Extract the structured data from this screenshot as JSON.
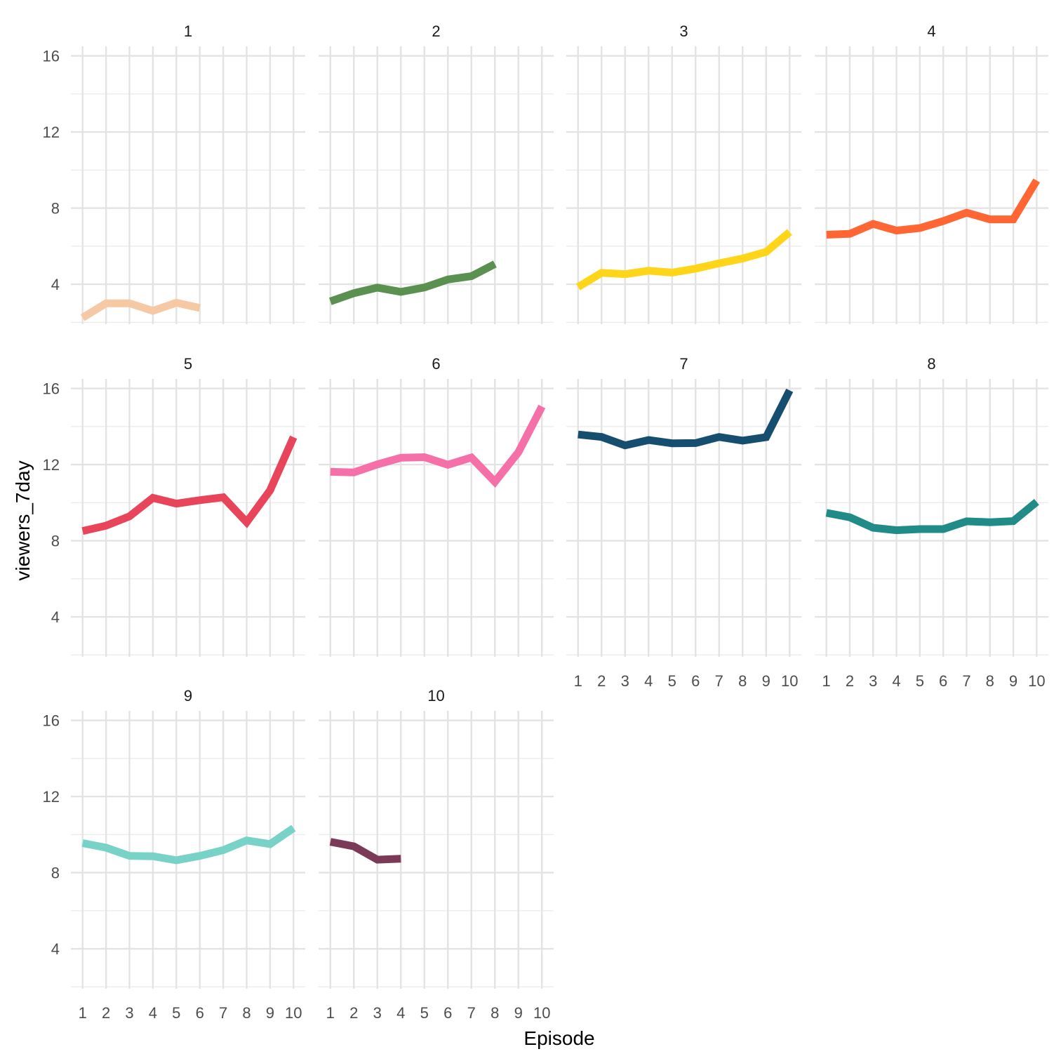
{
  "chart_data": {
    "type": "line",
    "layout": "facet_wrap",
    "xlabel": "Episode",
    "ylabel": "viewers_7day",
    "x_ticks": [
      1,
      2,
      3,
      4,
      5,
      6,
      7,
      8,
      9,
      10
    ],
    "y_ticks": [
      4,
      8,
      12,
      16
    ],
    "xlim": [
      0.5,
      10.5
    ],
    "ylim": [
      1.9,
      16.5
    ],
    "grid": true,
    "legend": "none",
    "panels": [
      {
        "label": "1",
        "color": "#F5C9A3",
        "x": [
          1,
          2,
          3,
          4,
          5,
          6
        ],
        "values": [
          2.24,
          3.0,
          3.0,
          2.6,
          3.03,
          2.75
        ]
      },
      {
        "label": "2",
        "color": "#5A9150",
        "x": [
          1,
          2,
          3,
          4,
          5,
          6,
          7,
          8
        ],
        "values": [
          3.1,
          3.53,
          3.82,
          3.6,
          3.83,
          4.25,
          4.42,
          5.06
        ]
      },
      {
        "label": "3",
        "color": "#FFD51A",
        "x": [
          1,
          2,
          3,
          4,
          5,
          6,
          7,
          8,
          9,
          10
        ],
        "values": [
          3.85,
          4.6,
          4.53,
          4.71,
          4.61,
          4.82,
          5.1,
          5.35,
          5.7,
          6.74
        ]
      },
      {
        "label": "4",
        "color": "#FF6633",
        "x": [
          1,
          2,
          3,
          4,
          5,
          6,
          7,
          8,
          9,
          10
        ],
        "values": [
          6.6,
          6.65,
          7.17,
          6.82,
          6.95,
          7.32,
          7.76,
          7.41,
          7.41,
          9.45
        ]
      },
      {
        "label": "5",
        "color": "#E8445A",
        "x": [
          1,
          2,
          3,
          4,
          5,
          6,
          7,
          8,
          9,
          10
        ],
        "values": [
          8.51,
          8.79,
          9.28,
          10.25,
          9.95,
          10.13,
          10.28,
          8.97,
          10.65,
          13.44
        ]
      },
      {
        "label": "6",
        "color": "#F570A8",
        "x": [
          1,
          2,
          3,
          4,
          5,
          6,
          7,
          8,
          9,
          10
        ],
        "values": [
          11.62,
          11.59,
          12.01,
          12.36,
          12.39,
          11.99,
          12.37,
          11.09,
          12.65,
          15.05
        ]
      },
      {
        "label": "7",
        "color": "#154E6E",
        "x": [
          1,
          2,
          3,
          4,
          5,
          6,
          7,
          8,
          9,
          10
        ],
        "values": [
          13.58,
          13.45,
          13.01,
          13.29,
          13.12,
          13.13,
          13.45,
          13.26,
          13.44,
          15.9
        ]
      },
      {
        "label": "8",
        "color": "#218B87",
        "x": [
          1,
          2,
          3,
          4,
          5,
          6,
          7,
          8,
          9,
          10
        ],
        "values": [
          9.46,
          9.23,
          8.68,
          8.55,
          8.61,
          8.61,
          9.02,
          8.97,
          9.03,
          10.04
        ]
      },
      {
        "label": "9",
        "color": "#79D2C8",
        "x": [
          1,
          2,
          3,
          4,
          5,
          6,
          7,
          8,
          9,
          10
        ],
        "values": [
          9.55,
          9.31,
          8.88,
          8.86,
          8.65,
          8.88,
          9.18,
          9.69,
          9.5,
          10.34
        ]
      },
      {
        "label": "10",
        "color": "#7B3A57",
        "x": [
          1,
          2,
          3,
          4
        ],
        "values": [
          9.62,
          9.38,
          8.68,
          8.73
        ]
      }
    ]
  }
}
